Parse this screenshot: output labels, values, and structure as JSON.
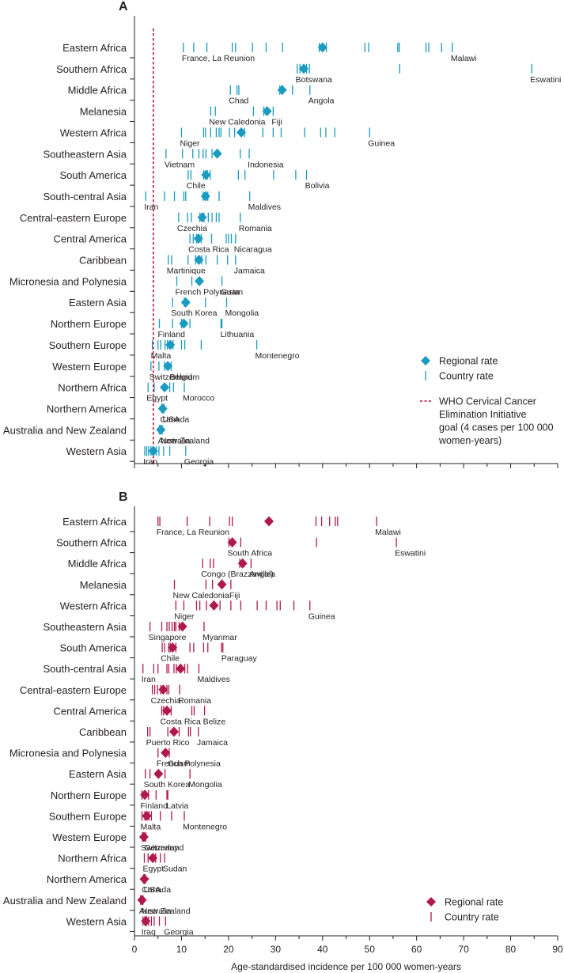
{
  "chart_data": [
    {
      "panel": "A",
      "type": "scatter",
      "title": "",
      "xlabel": "",
      "xlim": [
        0,
        90
      ],
      "x_ticks": [],
      "color": "#1a9bbf",
      "goal_line": {
        "x": 4,
        "color": "#c1143e"
      },
      "legend": {
        "placement": "right",
        "regional_rate": "Regional rate",
        "country_rate": "Country rate",
        "goal_label": [
          "WHO Cervical Cancer",
          "Elimination Initiative",
          "goal (4 cases per 100 000",
          "women-years)"
        ]
      },
      "regions": [
        {
          "name": "Eastern Africa",
          "rate": 40,
          "countries": [
            10.4,
            12.6,
            15.4,
            20.8,
            21.5,
            25.1,
            28.0,
            31.5,
            39.3,
            40.8,
            49.0,
            49.8,
            56.0,
            56.3,
            62.0,
            62.6,
            65.3,
            67.6
          ],
          "low": "France, La Reunion",
          "high": "Malawi"
        },
        {
          "name": "Southern Africa",
          "rate": 36,
          "countries": [
            34.6,
            35.2,
            36.6,
            37.2,
            56.4,
            84.5
          ],
          "low": "Botswana",
          "high": "Eswatini"
        },
        {
          "name": "Middle Africa",
          "rate": 31.4,
          "countries": [
            20.4,
            21.8,
            22.2,
            30.9,
            33.6,
            37.3
          ],
          "low": "Chad",
          "high": "Angola"
        },
        {
          "name": "Melanesia",
          "rate": 28.2,
          "countries": [
            16.2,
            17.2,
            25.3,
            27.5,
            29.5
          ],
          "low": "New Caledonia",
          "high": "Fiji"
        },
        {
          "name": "Western Africa",
          "rate": 22.7,
          "countries": [
            10.0,
            14.7,
            15.1,
            16.2,
            17.4,
            18.0,
            18.4,
            20.2,
            21.3,
            23.4,
            27.3,
            29.5,
            31.2,
            36.2,
            39.6,
            40.7,
            42.6,
            50.0
          ],
          "low": "Niger",
          "high": "Guinea"
        },
        {
          "name": "Southeastern Asia",
          "rate": 17.6,
          "countries": [
            6.7,
            10.2,
            12.4,
            13.7,
            14.6,
            15.2,
            16.5,
            22.5,
            24.4
          ],
          "low": "Vietnam",
          "high": "Indonesia"
        },
        {
          "name": "South America",
          "rate": 15.2,
          "countries": [
            11.4,
            12.0,
            14.7,
            15.5,
            16.1,
            22.1,
            23.5,
            29.6,
            34.3,
            36.6
          ],
          "low": "Chile",
          "high": "Bolivia"
        },
        {
          "name": "South-central Asia",
          "rate": 15.1,
          "countries": [
            2.4,
            6.4,
            8.5,
            10.5,
            10.9,
            14.6,
            15.6,
            18.0,
            24.5
          ],
          "low": "Iran",
          "high": "Maldives"
        },
        {
          "name": "Central-eastern Europe",
          "rate": 14.4,
          "countries": [
            9.4,
            11.3,
            12.1,
            13.9,
            14.8,
            15.7,
            16.5,
            17.4,
            18.0,
            22.5
          ],
          "low": "Czechia",
          "high": "Romania"
        },
        {
          "name": "Central America",
          "rate": 13.6,
          "countries": [
            11.8,
            12.5,
            13.2,
            14.2,
            16.4,
            19.5,
            20.0,
            20.6,
            21.5
          ],
          "low": "Costa Rica",
          "high": "Nicaragua"
        },
        {
          "name": "Caribbean",
          "rate": 13.7,
          "countries": [
            7.2,
            7.9,
            11.4,
            13.0,
            14.3,
            15.2,
            17.6,
            19.8,
            21.5
          ],
          "low": "Martinique",
          "high": "Jamaica"
        },
        {
          "name": "Micronesia and Polynesia",
          "rate": 13.8,
          "countries": [
            9.0,
            12.2,
            18.6
          ],
          "low": "French Polynesia",
          "high": "Guam"
        },
        {
          "name": "Eastern Asia",
          "rate": 10.9,
          "countries": [
            8.1,
            10.6,
            15.1,
            19.6
          ],
          "low": "South Korea",
          "high": "Mongolia"
        },
        {
          "name": "Northern Europe",
          "rate": 10.5,
          "countries": [
            5.3,
            8.1,
            10.0,
            11.8,
            18.4,
            18.6
          ],
          "low": "Finland",
          "high": "Lithuania"
        },
        {
          "name": "Southern Europe",
          "rate": 7.6,
          "countries": [
            3.8,
            5.0,
            5.6,
            6.5,
            7.0,
            8.2,
            10.0,
            10.7,
            14.2,
            26.0
          ],
          "low": "Malta",
          "high": "Montenegro"
        },
        {
          "name": "Western Europe",
          "rate": 7.1,
          "countries": [
            3.5,
            5.2,
            6.4,
            7.8
          ],
          "low": "Switzerland",
          "high": "Belgium"
        },
        {
          "name": "Northern Africa",
          "rate": 6.4,
          "countries": [
            2.9,
            4.2,
            7.5,
            8.3,
            10.6
          ],
          "low": "Egypt",
          "high": "Morocco"
        },
        {
          "name": "Northern America",
          "rate": 6.0,
          "countries": [
            5.8,
            6.3
          ],
          "low": "Canada",
          "high": "USA"
        },
        {
          "name": "Australia and New Zealand",
          "rate": 5.6,
          "countries": [
            5.3,
            5.9
          ],
          "low": "Australia",
          "high": "New Zealand"
        },
        {
          "name": "Western Asia",
          "rate": 4.0,
          "countries": [
            2.2,
            2.6,
            3.0,
            3.5,
            4.6,
            5.2,
            6.2,
            7.5,
            10.9
          ],
          "low": "Iran",
          "high": "Georgia"
        }
      ]
    },
    {
      "panel": "B",
      "type": "scatter",
      "title": "",
      "xlabel": "Age-standardised incidence per 100 000 women-years",
      "xlim": [
        0,
        90
      ],
      "x_ticks": [
        "0",
        "10",
        "20",
        "30",
        "40",
        "50",
        "60",
        "70",
        "80",
        "90"
      ],
      "color": "#b01a4b",
      "legend": {
        "placement": "bottom-right",
        "regional_rate": "Regional rate",
        "country_rate": "Country rate"
      },
      "regions": [
        {
          "name": "Eastern Africa",
          "rate": 28.6,
          "countries": [
            5.0,
            5.4,
            11.2,
            16.0,
            20.2,
            20.8,
            38.6,
            39.8,
            41.5,
            42.7,
            43.2,
            51.5
          ],
          "low": "France, La Reunion",
          "high": "Malawi"
        },
        {
          "name": "Southern Africa",
          "rate": 20.8,
          "countries": [
            20.1,
            22.6,
            38.7,
            55.7
          ],
          "low": "South Africa",
          "high": "Eswatini"
        },
        {
          "name": "Middle Africa",
          "rate": 23.0,
          "countries": [
            14.5,
            16.1,
            16.8,
            22.4,
            24.8
          ],
          "low": "Congo (Brazzaville)",
          "high": "Angola"
        },
        {
          "name": "Melanesia",
          "rate": 18.6,
          "countries": [
            8.5,
            15.2,
            16.6,
            20.5
          ],
          "low": "New Caledonia",
          "high": "Fiji"
        },
        {
          "name": "Western Africa",
          "rate": 16.9,
          "countries": [
            8.8,
            10.5,
            13.2,
            13.9,
            15.3,
            18.2,
            20.5,
            22.6,
            26.1,
            28.0,
            30.3,
            31.0,
            33.9,
            37.3
          ],
          "low": "Niger",
          "high": "Guinea"
        },
        {
          "name": "Southeastern Asia",
          "rate": 10.2,
          "countries": [
            3.3,
            5.8,
            6.9,
            7.4,
            8.0,
            8.5,
            8.8,
            9.5,
            14.8
          ],
          "low": "Singapore",
          "high": "Myanmar"
        },
        {
          "name": "South America",
          "rate": 8.1,
          "countries": [
            5.9,
            6.4,
            7.3,
            7.6,
            8.8,
            11.8,
            12.6,
            14.7,
            15.6,
            18.5,
            18.8
          ],
          "low": "Chile",
          "high": "Paraguay"
        },
        {
          "name": "South-central Asia",
          "rate": 9.8,
          "countries": [
            1.8,
            4.1,
            5.0,
            6.9,
            7.3,
            8.4,
            8.9,
            10.7,
            11.3,
            13.7
          ],
          "low": "Iran",
          "high": "Maldives"
        },
        {
          "name": "Central-eastern Europe",
          "rate": 6.1,
          "countries": [
            3.8,
            4.3,
            4.9,
            5.6,
            6.9,
            7.3,
            9.6
          ],
          "low": "Czechia",
          "high": "Romania"
        },
        {
          "name": "Central America",
          "rate": 6.9,
          "countries": [
            5.8,
            6.2,
            7.8,
            12.2,
            12.7,
            14.9
          ],
          "low": "Costa Rica",
          "high": "Belize"
        },
        {
          "name": "Caribbean",
          "rate": 8.4,
          "countries": [
            2.8,
            3.3,
            7.1,
            9.5,
            11.5,
            11.9,
            13.6
          ],
          "low": "Puerto Rico",
          "high": "Jamaica"
        },
        {
          "name": "Micronesia and Polynesia",
          "rate": 6.6,
          "countries": [
            5.0,
            7.4
          ],
          "low": "French Polynesia",
          "high": "Guam"
        },
        {
          "name": "Eastern Asia",
          "rate": 5.1,
          "countries": [
            2.3,
            3.3,
            6.5,
            11.8
          ],
          "low": "South Korea",
          "high": "Mongolia"
        },
        {
          "name": "Northern Europe",
          "rate": 2.2,
          "countries": [
            1.6,
            3.0,
            4.6,
            6.9,
            7.1
          ],
          "low": "Finland",
          "high": "Latvia"
        },
        {
          "name": "Southern Europe",
          "rate": 2.6,
          "countries": [
            1.6,
            2.2,
            3.1,
            3.6,
            5.5,
            7.9,
            10.6
          ],
          "low": "Malta",
          "high": "Montenegro"
        },
        {
          "name": "Western Europe",
          "rate": 2.0,
          "countries": [
            1.7,
            2.4
          ],
          "low": "Switzerland",
          "high": "Germany"
        },
        {
          "name": "Northern Africa",
          "rate": 3.9,
          "countries": [
            2.1,
            2.9,
            4.5,
            5.5,
            6.4
          ],
          "low": "Egypt",
          "high": "Sudan"
        },
        {
          "name": "Northern America",
          "rate": 2.1,
          "countries": [
            1.9,
            2.3
          ],
          "low": "Canada",
          "high": "USA"
        },
        {
          "name": "Australia and New Zealand",
          "rate": 1.6,
          "countries": [
            1.3,
            1.8
          ],
          "low": "Australia",
          "high": "New Zealand"
        },
        {
          "name": "Western Asia",
          "rate": 2.4,
          "countries": [
            1.8,
            2.2,
            2.6,
            3.0,
            3.6,
            4.2,
            5.3,
            6.6
          ],
          "low": "Iraq",
          "high": "Georgia"
        }
      ]
    }
  ]
}
